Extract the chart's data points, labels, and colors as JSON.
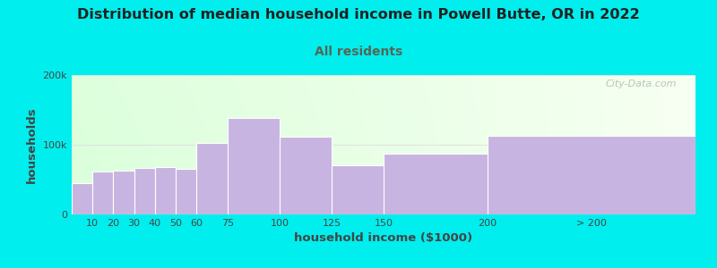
{
  "title": "Distribution of median household income in Powell Butte, OR in 2022",
  "subtitle": "All residents",
  "xlabel": "household income ($1000)",
  "ylabel": "households",
  "background_color": "#00EEEE",
  "plot_bg_color_topleft": "#e8f5e0",
  "plot_bg_color_right": "#f8f8f0",
  "bar_color": "#c8b4e0",
  "bar_edge_color": "#ffffff",
  "title_fontsize": 11.5,
  "subtitle_fontsize": 10,
  "bar_widths": [
    10,
    10,
    10,
    10,
    10,
    15,
    25,
    25,
    25,
    50,
    50,
    100
  ],
  "bar_lefts": [
    0,
    10,
    20,
    30,
    40,
    50,
    60,
    75,
    100,
    125,
    150,
    200
  ],
  "values": [
    45000,
    62000,
    63000,
    67000,
    68000,
    65000,
    103000,
    138000,
    112000,
    70000,
    87000,
    113000
  ],
  "ylim": [
    0,
    200000
  ],
  "yticks": [
    0,
    100000,
    200000
  ],
  "ytick_labels": [
    "0",
    "100k",
    "200k"
  ],
  "xtick_positions": [
    10,
    20,
    30,
    40,
    50,
    60,
    75,
    100,
    125,
    150,
    200,
    250
  ],
  "xtick_labels": [
    "10",
    "20",
    "30",
    "40",
    "50",
    "60",
    "75",
    "100",
    "125",
    "150",
    "200",
    "> 200"
  ],
  "xlim_left": 0,
  "xlim_right": 300,
  "watermark": "City-Data.com",
  "title_color": "#222222",
  "subtitle_color": "#556655",
  "axis_label_color": "#444444",
  "tick_color": "#444444",
  "grid_color": "#dddddd"
}
